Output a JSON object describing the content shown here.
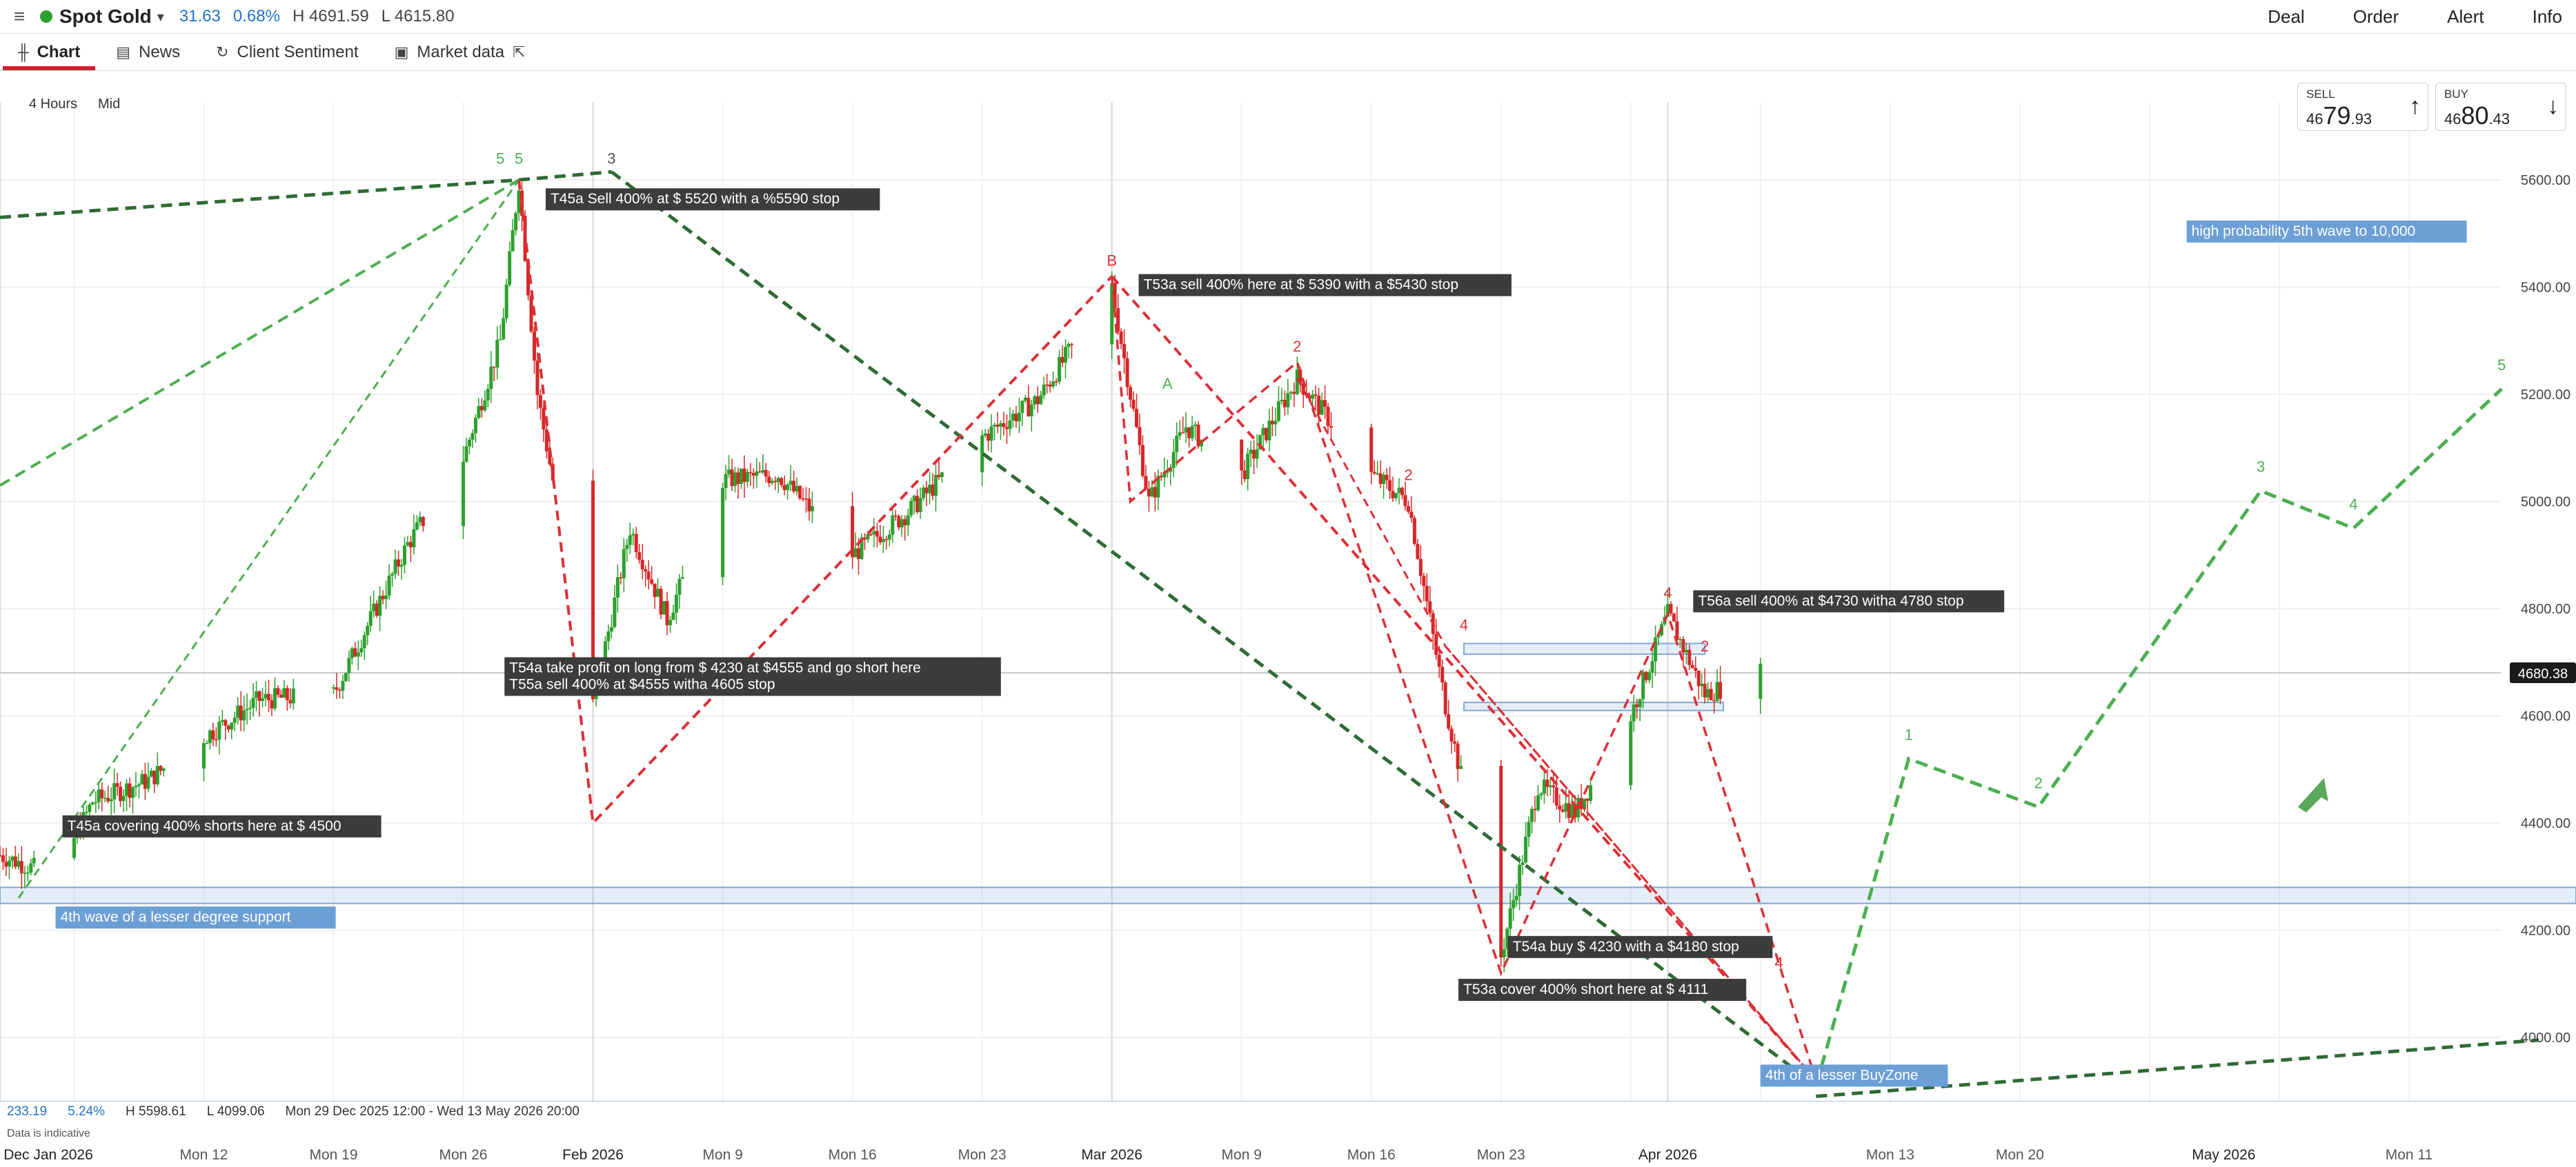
{
  "header": {
    "instrument": "Spot Gold",
    "change": "31.63",
    "change_pct": "0.68%",
    "high": "H 4691.59",
    "low": "L 4615.80",
    "actions": [
      "Deal",
      "Order",
      "Alert",
      "Info"
    ]
  },
  "tabs": [
    {
      "label": "Chart",
      "icon": "candlestick-icon"
    },
    {
      "label": "News",
      "icon": "newspaper-icon"
    },
    {
      "label": "Client Sentiment",
      "icon": "refresh-icon"
    },
    {
      "label": "Market data",
      "icon": "clipboard-icon"
    }
  ],
  "controls": {
    "interval": "4 Hours",
    "price_type": "Mid"
  },
  "sell": {
    "label": "SELL",
    "prefix": "46",
    "big": "79",
    "suffix": ".93"
  },
  "buy": {
    "label": "BUY",
    "prefix": "46",
    "big": "80",
    "suffix": ".43"
  },
  "status": {
    "value": "233.19",
    "pct": "5.24%",
    "high": "H 5598.61",
    "low": "L 4099.06",
    "range": "Mon 29 Dec 2025 12:00 - Wed 13 May 2026 20:00"
  },
  "disclaimer": "Data is indicative",
  "chart_data": {
    "type": "candlestick",
    "ylim": [
      3860,
      5700
    ],
    "y_ticks": [
      4000,
      4200,
      4400,
      4600,
      4800,
      5000,
      5200,
      5400,
      5600
    ],
    "y_tick_labels": [
      "4000.00",
      "4200.00",
      "4400.00",
      "4600.00",
      "4800.00",
      "5000.00",
      "5200.00",
      "5400.00",
      "5600.00"
    ],
    "current_price": 4680.38,
    "current_price_label": "4680.38",
    "x_labels": [
      "Dec Jan 2026",
      "Mon 12",
      "Mon 19",
      "Mon 26",
      "Feb 2026",
      "Mon 9",
      "Mon 16",
      "Mon 23",
      "Mar 2026",
      "Mon 9",
      "Mon 16",
      "Mon 23",
      "Apr 2026",
      "Mon 13",
      "Mon 20",
      "May 2026",
      "Mon 11"
    ],
    "price_path": [
      [
        "2026-01-01",
        4340
      ],
      [
        "2026-01-04",
        4300
      ],
      [
        "2026-01-06",
        4440
      ],
      [
        "2026-01-09",
        4480
      ],
      [
        "2026-01-12",
        4560
      ],
      [
        "2026-01-15",
        4630
      ],
      [
        "2026-01-19",
        4640
      ],
      [
        "2026-01-21",
        4780
      ],
      [
        "2026-01-23",
        4920
      ],
      [
        "2026-01-26",
        5080
      ],
      [
        "2026-01-28",
        5300
      ],
      [
        "2026-01-29",
        5598
      ],
      [
        "2026-01-30",
        5200
      ],
      [
        "2026-02-02",
        4620
      ],
      [
        "2026-02-04",
        4950
      ],
      [
        "2026-02-06",
        4780
      ],
      [
        "2026-02-09",
        5040
      ],
      [
        "2026-02-12",
        5050
      ],
      [
        "2026-02-16",
        4900
      ],
      [
        "2026-02-19",
        4980
      ],
      [
        "2026-02-23",
        5120
      ],
      [
        "2026-02-26",
        5190
      ],
      [
        "2026-03-02",
        5400
      ],
      [
        "2026-03-04",
        5000
      ],
      [
        "2026-03-06",
        5140
      ],
      [
        "2026-03-09",
        5050
      ],
      [
        "2026-03-12",
        5230
      ],
      [
        "2026-03-16",
        5050
      ],
      [
        "2026-03-18",
        5000
      ],
      [
        "2026-03-20",
        4620
      ],
      [
        "2026-03-23",
        4150
      ],
      [
        "2026-03-25",
        4470
      ],
      [
        "2026-03-27",
        4420
      ],
      [
        "2026-03-30",
        4600
      ],
      [
        "2026-04-01",
        4790
      ],
      [
        "2026-04-03",
        4640
      ],
      [
        "2026-04-06",
        4680
      ]
    ],
    "projection": [
      [
        "2026-04-09",
        3910
      ],
      [
        "2026-04-14",
        4520
      ],
      [
        "2026-04-21",
        4430
      ],
      [
        "2026-05-03",
        5020
      ],
      [
        "2026-05-08",
        4950
      ],
      [
        "2026-05-16",
        5210
      ]
    ],
    "projection_labels": [
      "1",
      "2",
      "3",
      "4",
      "5"
    ],
    "annotations": [
      "T45a Sell 400% at $ 5520 with a %5590 stop",
      "T53a sell 400% here at $ 5390 with a $5430 stop",
      "T54a take profit on long from $ 4230 at $4555 and go short here",
      "T55a sell 400% at $4555 witha 4605 stop",
      "T56a sell 400% at $4730 witha 4780 stop",
      "T45a covering 400% shorts here at $ 4500",
      "T54a buy $ 4230 with a $4180 stop",
      "T53a cover 400% short here at $ 4111"
    ],
    "zone_labels": [
      "high probability 5th wave to 10,000",
      "4th wave of a lesser degree support",
      "4th of a lesser BuyZone"
    ],
    "wave_labels": [
      "5",
      "5",
      "3",
      "B",
      "A",
      "2",
      "2",
      "4",
      "4",
      "2",
      "4"
    ]
  }
}
